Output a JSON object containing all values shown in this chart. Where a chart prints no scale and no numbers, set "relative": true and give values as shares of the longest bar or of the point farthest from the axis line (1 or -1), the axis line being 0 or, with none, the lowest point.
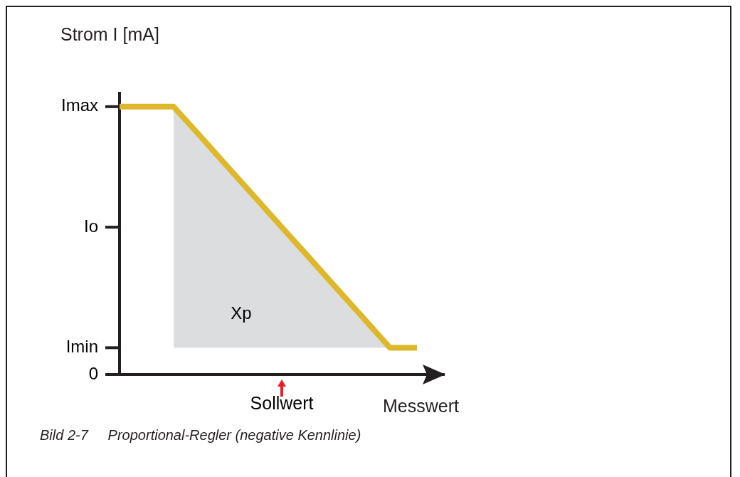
{
  "chart_data": {
    "type": "line",
    "relative": true,
    "ylabel": "Strom I [mA]",
    "xlabel": "Messwert",
    "categories": [
      null,
      null,
      null,
      null,
      null,
      null,
      null,
      null,
      null,
      null,
      null,
      null,
      null
    ],
    "series": [
      {
        "color": "#deb82a",
        "values": [
          1,
          1,
          1,
          0.888,
          0.775,
          0.663,
          0.55,
          0.438,
          0.325,
          0.213,
          0.1,
          0.1,
          null
        ],
        "lower": [
          null,
          null,
          0.1,
          0.1,
          0.1,
          0.1,
          0.1,
          0.1,
          0.1,
          0.1,
          0.1,
          null,
          null
        ],
        "upper": [
          null,
          null,
          1,
          0.888,
          0.775,
          0.663,
          0.55,
          0.438,
          0.325,
          0.213,
          0.1,
          null,
          null
        ]
      }
    ],
    "annotations": [
      "Bild 2-7     Proportional-Regler (negative Kennlinie)",
      "Xp",
      "Sollwert",
      "Imax",
      "Io",
      "Imin",
      "0"
    ]
  }
}
